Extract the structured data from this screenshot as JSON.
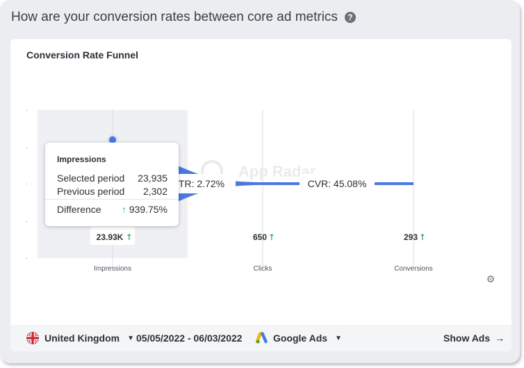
{
  "section": {
    "title": "How are your conversion rates between core ad metrics",
    "help_icon": "question-circle-icon"
  },
  "card": {
    "title": "Conversion Rate Funnel",
    "settings_icon": "gear-icon"
  },
  "chart_data": {
    "type": "funnel",
    "title": "Conversion Rate Funnel",
    "categories": [
      "Impressions",
      "Clicks",
      "Conversions"
    ],
    "values": [
      23935,
      650,
      293
    ],
    "value_labels": [
      "23.93K",
      "650",
      "293"
    ],
    "rate_labels": [
      "CTR: 2.72%",
      "CVR: 45.08%"
    ],
    "highlighted_category": "Impressions",
    "trend": [
      "up",
      "up",
      "up"
    ],
    "line_color": "#4a78e0",
    "highlight_color": "#eef0f4",
    "watermark": "App Radar"
  },
  "tooltip": {
    "title": "Impressions",
    "selected_label": "Selected period",
    "selected_value": "23,935",
    "previous_label": "Previous period",
    "previous_value": "2,302",
    "difference_label": "Difference",
    "difference_value": "939.75%",
    "arrow": "↑"
  },
  "footer": {
    "country": "United Kingdom",
    "country_flag": "uk-flag-icon",
    "date_range": "05/05/2022 - 06/03/2022",
    "network": "Google Ads",
    "network_icon": "google-ads-icon",
    "show_ads": "Show Ads",
    "arrow": "→"
  },
  "colors": {
    "positive": "#38b36a",
    "accent": "#4a78e0"
  }
}
